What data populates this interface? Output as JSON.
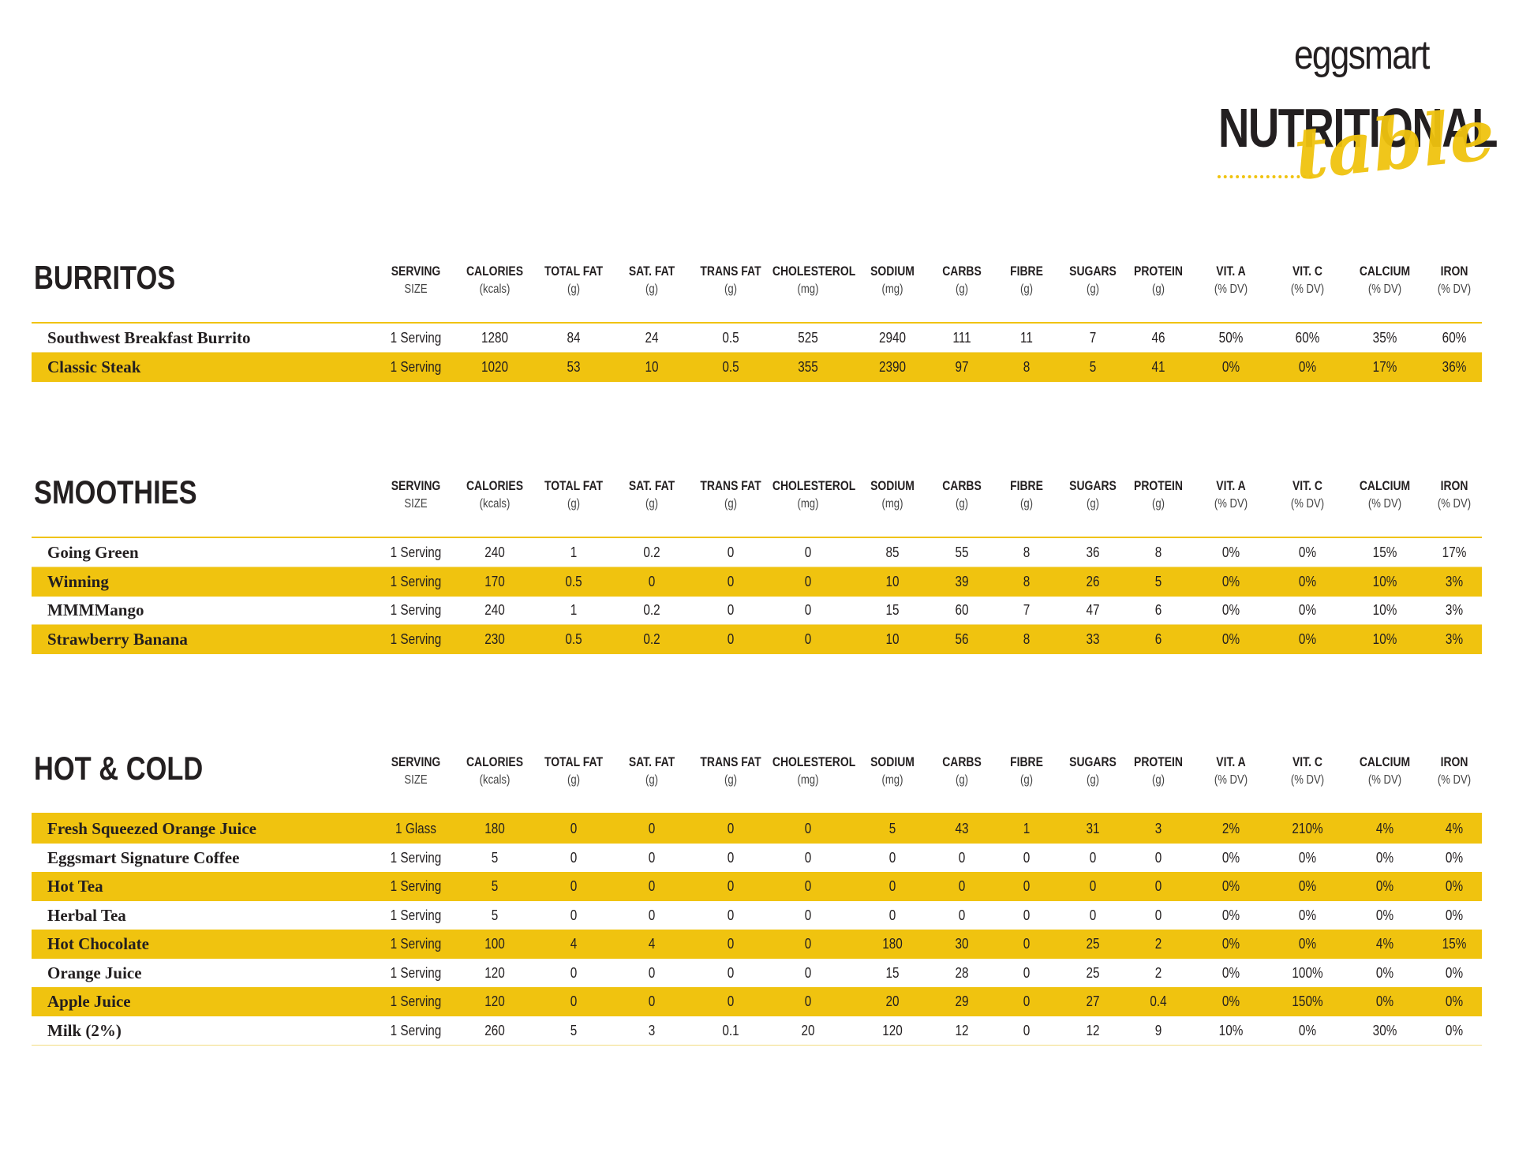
{
  "logo": {
    "brand": "eggsmart",
    "title": "NUTRITIONAL",
    "script": "table"
  },
  "columns": [
    {
      "label": "SERVING",
      "sub": "SIZE"
    },
    {
      "label": "CALORIES",
      "sub": "(kcals)"
    },
    {
      "label": "TOTAL FAT",
      "sub": "(g)"
    },
    {
      "label": "SAT. FAT",
      "sub": "(g)"
    },
    {
      "label": "TRANS FAT",
      "sub": "(g)"
    },
    {
      "label": "CHOLESTEROL",
      "sub": "(mg)"
    },
    {
      "label": "SODIUM",
      "sub": "(mg)"
    },
    {
      "label": "CARBS",
      "sub": "(g)"
    },
    {
      "label": "FIBRE",
      "sub": "(g)"
    },
    {
      "label": "SUGARS",
      "sub": "(g)"
    },
    {
      "label": "PROTEIN",
      "sub": "(g)"
    },
    {
      "label": "VIT. A",
      "sub": "(% DV)"
    },
    {
      "label": "VIT. C",
      "sub": "(% DV)"
    },
    {
      "label": "CALCIUM",
      "sub": "(% DV)"
    },
    {
      "label": "IRON",
      "sub": "(% DV)"
    }
  ],
  "sections": [
    {
      "title": "BURRITOS",
      "rows": [
        [
          "Southwest Breakfast Burrito",
          "1 Serving",
          "1280",
          "84",
          "24",
          "0.5",
          "525",
          "2940",
          "111",
          "11",
          "7",
          "46",
          "50%",
          "60%",
          "35%",
          "60%"
        ],
        [
          "Classic Steak",
          "1 Serving",
          "1020",
          "53",
          "10",
          "0.5",
          "355",
          "2390",
          "97",
          "8",
          "5",
          "41",
          "0%",
          "0%",
          "17%",
          "36%"
        ]
      ]
    },
    {
      "title": "SMOOTHIES",
      "rows": [
        [
          "Going Green",
          "1 Serving",
          "240",
          "1",
          "0.2",
          "0",
          "0",
          "85",
          "55",
          "8",
          "36",
          "8",
          "0%",
          "0%",
          "15%",
          "17%"
        ],
        [
          "Winning",
          "1 Serving",
          "170",
          "0.5",
          "0",
          "0",
          "0",
          "10",
          "39",
          "8",
          "26",
          "5",
          "0%",
          "0%",
          "10%",
          "3%"
        ],
        [
          "MMMMango",
          "1 Serving",
          "240",
          "1",
          "0.2",
          "0",
          "0",
          "15",
          "60",
          "7",
          "47",
          "6",
          "0%",
          "0%",
          "10%",
          "3%"
        ],
        [
          "Strawberry Banana",
          "1 Serving",
          "230",
          "0.5",
          "0.2",
          "0",
          "0",
          "10",
          "56",
          "8",
          "33",
          "6",
          "0%",
          "0%",
          "10%",
          "3%"
        ]
      ]
    },
    {
      "title": "HOT & COLD",
      "rows": [
        [
          "Fresh Squeezed Orange Juice",
          "1 Glass",
          "180",
          "0",
          "0",
          "0",
          "0",
          "5",
          "43",
          "1",
          "31",
          "3",
          "2%",
          "210%",
          "4%",
          "4%"
        ],
        [
          "Eggsmart Signature Coffee",
          "1 Serving",
          "5",
          "0",
          "0",
          "0",
          "0",
          "0",
          "0",
          "0",
          "0",
          "0",
          "0%",
          "0%",
          "0%",
          "0%"
        ],
        [
          "Hot Tea",
          "1 Serving",
          "5",
          "0",
          "0",
          "0",
          "0",
          "0",
          "0",
          "0",
          "0",
          "0",
          "0%",
          "0%",
          "0%",
          "0%"
        ],
        [
          "Herbal Tea",
          "1 Serving",
          "5",
          "0",
          "0",
          "0",
          "0",
          "0",
          "0",
          "0",
          "0",
          "0",
          "0%",
          "0%",
          "0%",
          "0%"
        ],
        [
          "Hot Chocolate",
          "1 Serving",
          "100",
          "4",
          "4",
          "0",
          "0",
          "180",
          "30",
          "0",
          "25",
          "2",
          "0%",
          "0%",
          "4%",
          "15%"
        ],
        [
          "Orange Juice",
          "1 Serving",
          "120",
          "0",
          "0",
          "0",
          "0",
          "15",
          "28",
          "0",
          "25",
          "2",
          "0%",
          "100%",
          "0%",
          "0%"
        ],
        [
          "Apple Juice",
          "1 Serving",
          "120",
          "0",
          "0",
          "0",
          "0",
          "20",
          "29",
          "0",
          "27",
          "0.4",
          "0%",
          "150%",
          "0%",
          "0%"
        ],
        [
          "Milk (2%)",
          "1 Serving",
          "260",
          "5",
          "3",
          "0.1",
          "20",
          "120",
          "12",
          "0",
          "12",
          "9",
          "10%",
          "0%",
          "30%",
          "0%"
        ]
      ]
    }
  ]
}
